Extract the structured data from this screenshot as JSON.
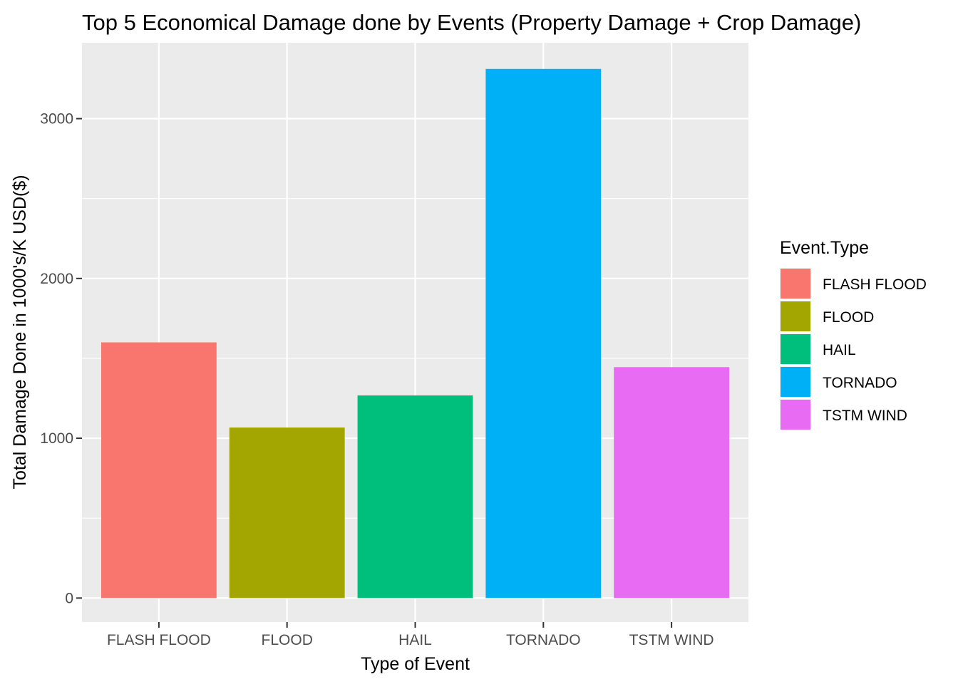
{
  "chart_data": {
    "type": "bar",
    "title": "Top 5 Economical Damage done by Events (Property Damage + Crop Damage)",
    "xlabel": "Type of Event",
    "ylabel": "Total Damage Done in 1000's/K USD($)",
    "categories": [
      "FLASH FLOOD",
      "FLOOD",
      "HAIL",
      "TORNADO",
      "TSTM WIND"
    ],
    "values": [
      1600,
      1067,
      1268,
      3311,
      1445
    ],
    "colors": [
      "#F8766D",
      "#A3A500",
      "#00BF7D",
      "#00B0F6",
      "#E76BF3"
    ],
    "ylim": [
      -150,
      3475
    ],
    "yticks": [
      0,
      1000,
      2000,
      3000
    ],
    "y_minor_ticks": [
      500,
      1500,
      2500
    ],
    "grid": true,
    "panel_background": "#EBEBEB",
    "grid_color": "#FFFFFF",
    "legend": {
      "title": "Event.Type",
      "position": "right",
      "entries": [
        "FLASH FLOOD",
        "FLOOD",
        "HAIL",
        "TORNADO",
        "TSTM WIND"
      ]
    }
  }
}
